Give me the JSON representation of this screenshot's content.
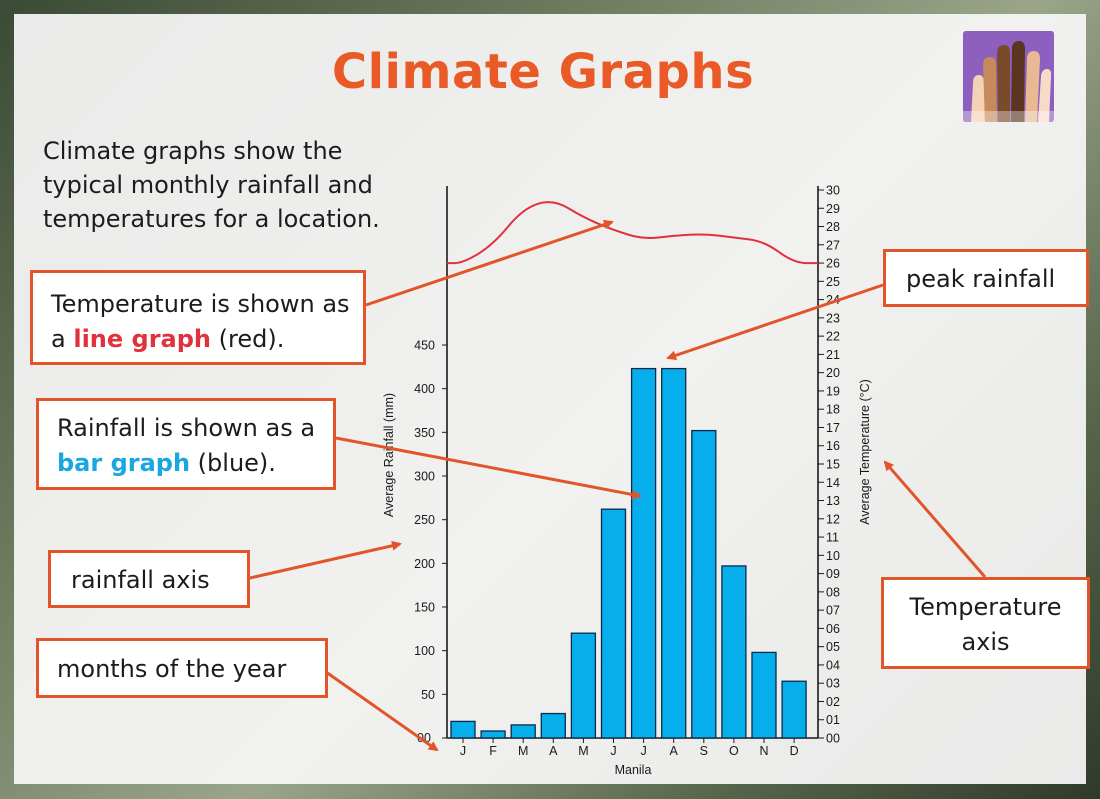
{
  "title": "Climate Graphs",
  "intro": "Climate graphs show the typical monthly rainfall and temperatures for a location.",
  "callouts": {
    "temperature": {
      "prefix": "Temperature is shown as a ",
      "highlight": "line graph",
      "suffix": " (red)."
    },
    "rainfall": {
      "prefix": "Rainfall is shown as a ",
      "highlight": "bar graph",
      "suffix": " (blue)."
    },
    "rainfall_axis": "rainfall axis",
    "months": "months of the year",
    "peak": "peak rainfall",
    "temp_axis": "Temperature axis"
  },
  "colors": {
    "accent": "#ea5a27",
    "bars": "#06aeec",
    "line": "#e1313d",
    "callout_border": "#e2542a"
  },
  "chart_data": {
    "type": "bar",
    "location": "Manila",
    "categories": [
      "J",
      "F",
      "M",
      "A",
      "M",
      "J",
      "J",
      "A",
      "S",
      "O",
      "N",
      "D"
    ],
    "xlabel": "Manila",
    "ylabel": "Average Rainfall (mm)",
    "ylim": [
      0,
      450
    ],
    "yticks": [
      "00",
      "50",
      "100",
      "150",
      "200",
      "250",
      "300",
      "350",
      "400",
      "450"
    ],
    "y2label": "Average Temperature (°C)",
    "y2lim": [
      0,
      30
    ],
    "series": [
      {
        "kind": "bar",
        "values": [
          19,
          8,
          15,
          28,
          120,
          262,
          423,
          423,
          352,
          197,
          98,
          65
        ]
      },
      {
        "kind": "line",
        "values": [
          26.0,
          27.0,
          29.0,
          29.5,
          28.5,
          27.8,
          27.3,
          27.5,
          27.6,
          27.4,
          27.2,
          26.0
        ]
      }
    ],
    "grid": false
  }
}
